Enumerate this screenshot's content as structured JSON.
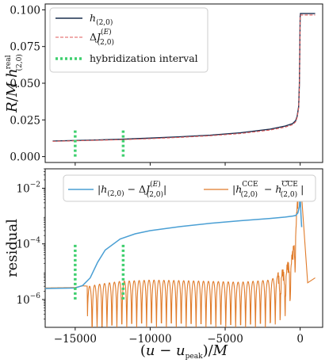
{
  "chart_data": [
    {
      "type": "line",
      "ylabel": "R/M h(2,0)real",
      "ylim": [
        -0.004,
        0.104
      ],
      "xlim": [
        -17000,
        1500
      ],
      "yticks": [
        0.0,
        0.025,
        0.05,
        0.075,
        0.1
      ],
      "ytick_labels": [
        "0.000",
        "0.025",
        "0.050",
        "0.075",
        "0.100"
      ],
      "legend": "top-left",
      "legend_labels": [
        "h(2,0)",
        "ΔJ(2,0)(E)",
        "hybridization interval"
      ],
      "series": [
        {
          "name": "h(2,0)",
          "color": "#1a2f4f",
          "x": [
            -16500,
            -14000,
            -12000,
            -10000,
            -8000,
            -6000,
            -4000,
            -2000,
            -1000,
            -500,
            -300,
            -200,
            -100,
            -50,
            0,
            20,
            200,
            1000
          ],
          "y": [
            0.0106,
            0.0112,
            0.0118,
            0.0126,
            0.0135,
            0.0146,
            0.0162,
            0.0187,
            0.0208,
            0.0225,
            0.0245,
            0.0275,
            0.034,
            0.05,
            0.0955,
            0.0975,
            0.0975,
            0.0975
          ]
        },
        {
          "name": "ΔJ(2,0)(E)",
          "color": "#e05a5a",
          "dashed": true,
          "x": [
            -16500,
            -14000,
            -12000,
            -10000,
            -8000,
            -6000,
            -4000,
            -2000,
            -1000,
            -500,
            -300,
            -200,
            -100,
            -50,
            0,
            20,
            200,
            1000
          ],
          "y": [
            0.0104,
            0.011,
            0.0115,
            0.0122,
            0.0131,
            0.0142,
            0.0157,
            0.0181,
            0.0201,
            0.0217,
            0.0237,
            0.0267,
            0.033,
            0.049,
            0.0945,
            0.0965,
            0.0965,
            0.0965
          ]
        }
      ],
      "hybridization_interval": {
        "x": [
          -15000,
          -11800
        ],
        "y": [
          0.0,
          0.018
        ]
      }
    },
    {
      "type": "line",
      "ylabel": "residual",
      "xlabel": "(u − upeak)/M",
      "yscale": "log",
      "ylim": [
        1e-07,
        0.05
      ],
      "xlim": [
        -17000,
        1500
      ],
      "xticks": [
        -15000,
        -10000,
        -5000,
        0
      ],
      "xtick_labels": [
        "−15000",
        "−10000",
        "−5000",
        "0"
      ],
      "yticks": [
        1e-06,
        0.0001,
        0.01
      ],
      "ytick_labels": [
        "10−6",
        "10−4",
        "10−2"
      ],
      "legend": "top",
      "legend_labels": [
        "|h(2,0) − ΔJ(2,0)(E)|",
        "|h(2,0)CCE − h(2,0)CCE̅|"
      ],
      "series": [
        {
          "name": "|h(2,0) − ΔJ(2,0)(E)|",
          "color": "#4a9fd4",
          "x": [
            -17000,
            -15000,
            -14500,
            -14000,
            -13500,
            -13000,
            -12000,
            -11000,
            -10000,
            -8000,
            -6000,
            -4000,
            -2000,
            -1000,
            -500,
            -300,
            -150,
            -50,
            0,
            50,
            100
          ],
          "y": [
            2.5e-06,
            2.6e-06,
            3.2e-06,
            6e-06,
            2.2e-05,
            6e-05,
            0.00015,
            0.00023,
            0.0003,
            0.00042,
            0.00055,
            0.00068,
            0.00082,
            0.00092,
            0.001,
            0.00105,
            0.0013,
            0.0022,
            0.008,
            0.0012,
            0.0004
          ]
        },
        {
          "name": "|h(2,0)CCE − h(2,0)CCE̅|",
          "color": "#e07b2a",
          "x": [
            -17000,
            -15000,
            -14500,
            -14000,
            -13500,
            -12000,
            -10000,
            -8000,
            -6000,
            -4000,
            -2000,
            -1000,
            -500,
            0,
            500,
            1000
          ],
          "y": [
            2.6e-06,
            2.7e-06,
            3.1e-06,
            3e-06,
            3.5e-06,
            4.5e-06,
            5e-06,
            4.8e-06,
            4.5e-06,
            4.2e-06,
            5e-06,
            1e-05,
            4e-05,
            0.03,
            4e-06,
            6e-06
          ]
        }
      ],
      "hybridization_interval": {
        "x": [
          -15000,
          -11800
        ],
        "y": [
          1e-06,
          0.0001
        ]
      }
    }
  ]
}
